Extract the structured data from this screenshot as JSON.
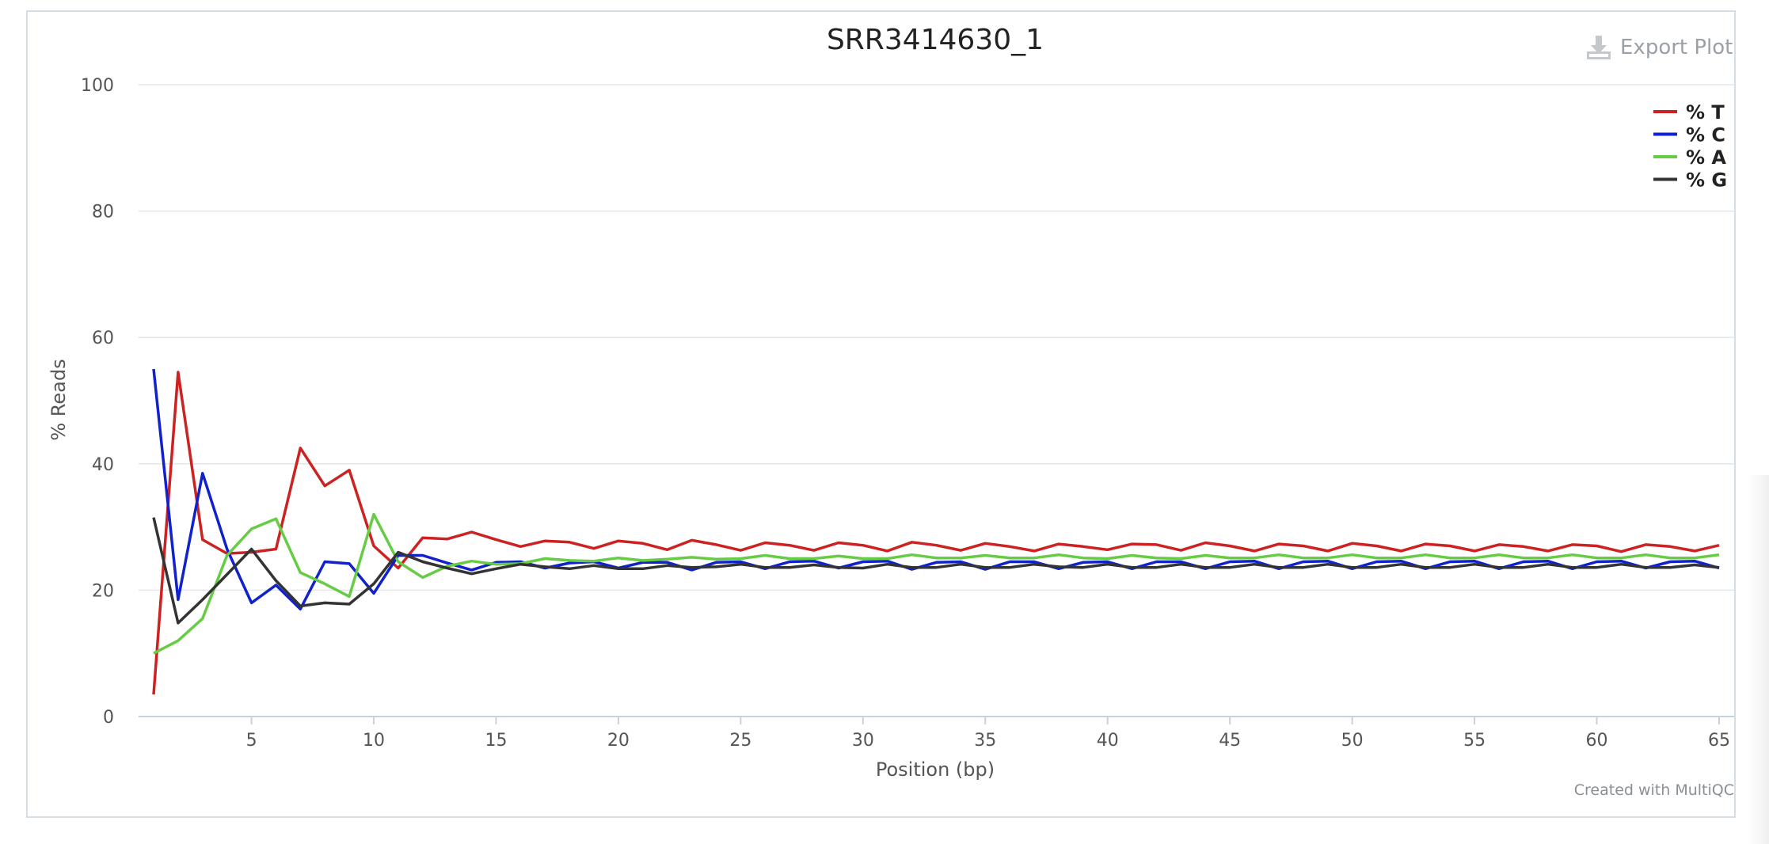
{
  "export_label": "Export Plot",
  "credit": "Created with MultiQC",
  "chart_data": {
    "type": "line",
    "title": "SRR3414630_1",
    "xlabel": "Position (bp)",
    "ylabel": "% Reads",
    "xlim": [
      1,
      65
    ],
    "ylim": [
      0,
      100
    ],
    "xticks": [
      "5",
      "10",
      "15",
      "20",
      "25",
      "30",
      "35",
      "40",
      "45",
      "50",
      "55",
      "60",
      "65"
    ],
    "yticks": [
      "0",
      "20",
      "40",
      "60",
      "80",
      "100"
    ],
    "grid": true,
    "legend_position": "top-right",
    "x": [
      1,
      2,
      3,
      4,
      5,
      6,
      7,
      8,
      9,
      10,
      11,
      12,
      13,
      14,
      15,
      16,
      17,
      18,
      19,
      20,
      21,
      22,
      23,
      24,
      25,
      26,
      27,
      28,
      29,
      30,
      31,
      32,
      33,
      34,
      35,
      36,
      37,
      38,
      39,
      40,
      41,
      42,
      43,
      44,
      45,
      46,
      47,
      48,
      49,
      50,
      51,
      52,
      53,
      54,
      55,
      56,
      57,
      58,
      59,
      60,
      61,
      62,
      63,
      64,
      65
    ],
    "series": [
      {
        "name": "% T",
        "color": "#cc2222",
        "values": [
          3.5,
          54.5,
          28,
          25.8,
          26,
          26.5,
          42.5,
          36.5,
          39,
          27,
          23.5,
          28.3,
          28.1,
          29.2,
          28,
          26.9,
          27.8,
          27.6,
          26.6,
          27.8,
          27.4,
          26.4,
          27.9,
          27.2,
          26.3,
          27.5,
          27.1,
          26.3,
          27.5,
          27.1,
          26.2,
          27.6,
          27.1,
          26.3,
          27.4,
          26.9,
          26.2,
          27.3,
          26.9,
          26.4,
          27.3,
          27.2,
          26.3,
          27.5,
          27.0,
          26.2,
          27.3,
          27.0,
          26.2,
          27.4,
          27.0,
          26.2,
          27.3,
          27.0,
          26.2,
          27.2,
          26.9,
          26.2,
          27.2,
          27.0,
          26.1,
          27.2,
          26.9,
          26.2,
          27.1
        ]
      },
      {
        "name": "% C",
        "color": "#1122cc",
        "values": [
          55,
          18.5,
          38.5,
          26.5,
          18,
          20.8,
          17,
          24.5,
          24.2,
          19.5,
          25.5,
          25.5,
          24.3,
          23.2,
          24.4,
          24.5,
          23.5,
          24.3,
          24.5,
          23.5,
          24.4,
          24.4,
          23.2,
          24.4,
          24.5,
          23.4,
          24.5,
          24.6,
          23.5,
          24.5,
          24.6,
          23.3,
          24.4,
          24.5,
          23.3,
          24.5,
          24.5,
          23.4,
          24.4,
          24.5,
          23.4,
          24.5,
          24.5,
          23.4,
          24.5,
          24.6,
          23.4,
          24.5,
          24.6,
          23.4,
          24.5,
          24.6,
          23.4,
          24.5,
          24.6,
          23.4,
          24.5,
          24.6,
          23.4,
          24.5,
          24.6,
          23.5,
          24.5,
          24.6,
          23.5
        ]
      },
      {
        "name": "% A",
        "color": "#66cc44",
        "values": [
          10,
          12,
          15.5,
          25.5,
          29.7,
          31.3,
          22.8,
          21,
          19,
          32,
          24.5,
          22,
          23.8,
          24.6,
          24.1,
          24.2,
          25.0,
          24.7,
          24.6,
          25.1,
          24.7,
          24.9,
          25.2,
          24.9,
          25.0,
          25.5,
          25.0,
          25.0,
          25.4,
          25.0,
          25.0,
          25.6,
          25.1,
          25.1,
          25.5,
          25.1,
          25.1,
          25.6,
          25.1,
          25.0,
          25.5,
          25.1,
          25.0,
          25.5,
          25.1,
          25.1,
          25.6,
          25.1,
          25.1,
          25.6,
          25.1,
          25.1,
          25.6,
          25.1,
          25.1,
          25.6,
          25.1,
          25.1,
          25.6,
          25.1,
          25.1,
          25.6,
          25.1,
          25.1,
          25.6
        ]
      },
      {
        "name": "% G",
        "color": "#333333",
        "values": [
          31.5,
          14.8,
          18.5,
          22.5,
          26.5,
          21.5,
          17.5,
          18,
          17.8,
          21,
          26,
          24.5,
          23.5,
          22.6,
          23.4,
          24.1,
          23.7,
          23.4,
          23.9,
          23.4,
          23.4,
          23.9,
          23.6,
          23.7,
          24.1,
          23.6,
          23.6,
          24.0,
          23.6,
          23.5,
          24.1,
          23.6,
          23.6,
          24.1,
          23.6,
          23.6,
          24.1,
          23.7,
          23.6,
          24.1,
          23.6,
          23.6,
          24.1,
          23.6,
          23.6,
          24.1,
          23.6,
          23.6,
          24.1,
          23.6,
          23.6,
          24.1,
          23.6,
          23.6,
          24.1,
          23.6,
          23.6,
          24.1,
          23.6,
          23.6,
          24.1,
          23.6,
          23.6,
          24.0,
          23.6
        ]
      }
    ]
  }
}
